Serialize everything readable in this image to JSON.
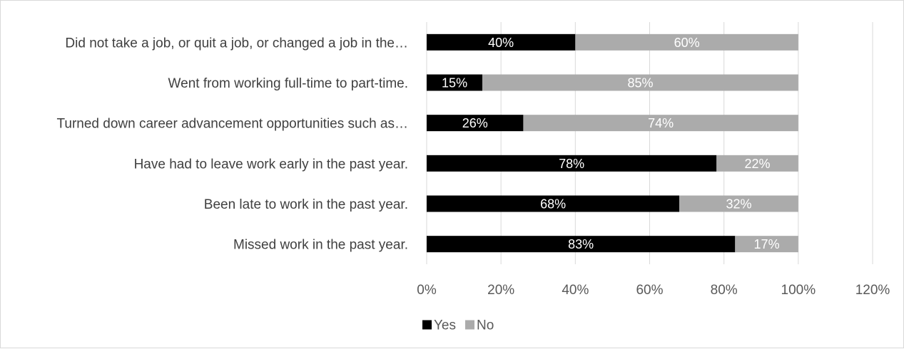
{
  "colors": {
    "yes": "#000000",
    "no": "#ababab",
    "grid": "#d9d9d9",
    "border": "#d9d9d9"
  },
  "chart_data": {
    "type": "bar",
    "orientation": "horizontal",
    "stacked": true,
    "title": "",
    "xlabel": "",
    "ylabel": "",
    "categories": [
      "Did not take a job, or quit a job, or changed a job in the…",
      "Went from working full-time to part-time.",
      "Turned down career advancement opportunities such as…",
      "Have had to leave work early in the past year.",
      "Been late to work in the past year.",
      "Missed work in the past year."
    ],
    "series": [
      {
        "name": "Yes",
        "color": "#000000",
        "values": [
          40,
          15,
          26,
          78,
          68,
          83
        ],
        "labels": [
          "40%",
          "15%",
          "26%",
          "78%",
          "68%",
          "83%"
        ]
      },
      {
        "name": "No",
        "color": "#ababab",
        "values": [
          60,
          85,
          74,
          22,
          32,
          17
        ],
        "labels": [
          "60%",
          "85%",
          "74%",
          "22%",
          "32%",
          "17%"
        ]
      }
    ],
    "xlim": [
      0,
      120
    ],
    "xticks": [
      0,
      20,
      40,
      60,
      80,
      100,
      120
    ],
    "xtick_labels": [
      "0%",
      "20%",
      "40%",
      "60%",
      "80%",
      "100%",
      "120%"
    ],
    "grid": "vertical",
    "legend": {
      "position": "bottom",
      "entries": [
        "Yes",
        "No"
      ]
    }
  }
}
